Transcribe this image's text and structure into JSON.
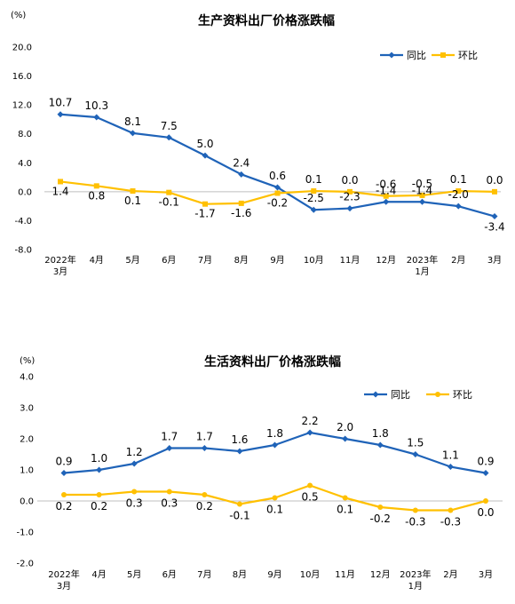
{
  "chart_data": [
    {
      "type": "line",
      "title": "生产资料出厂价格涨跌幅",
      "unit": "(%)",
      "categories": [
        "2022年\n3月",
        "4月",
        "5月",
        "6月",
        "7月",
        "8月",
        "9月",
        "10月",
        "11月",
        "12月",
        "2023年\n1月",
        "2月",
        "3月"
      ],
      "ylim": [
        -8,
        20
      ],
      "yticks": [
        "20.0",
        "16.0",
        "12.0",
        "8.0",
        "4.0",
        "0.0",
        "-4.0",
        "-8.0"
      ],
      "ytick_values": [
        20,
        16,
        12,
        8,
        4,
        0,
        -4,
        -8
      ],
      "legend_position": "top-right",
      "series": [
        {
          "name": "同比",
          "color": "#1F63B8",
          "marker": "diamond",
          "values": [
            10.7,
            10.3,
            8.1,
            7.5,
            5.0,
            2.4,
            0.6,
            -2.5,
            -2.3,
            -1.4,
            -1.4,
            -2.0,
            -3.4
          ],
          "labels": [
            "10.7",
            "10.3",
            "8.1",
            "7.5",
            "5.0",
            "2.4",
            "0.6",
            "-2.5",
            "-2.3",
            "-1.4",
            "-1.4",
            "-2.0",
            "-3.4"
          ]
        },
        {
          "name": "环比",
          "color": "#FFC000",
          "marker": "square",
          "values": [
            1.4,
            0.8,
            0.1,
            -0.1,
            -1.7,
            -1.6,
            -0.2,
            0.1,
            0.0,
            -0.6,
            -0.5,
            0.1,
            0.0
          ],
          "labels": [
            "1.4",
            "0.8",
            "0.1",
            "-0.1",
            "-1.7",
            "-1.6",
            "-0.2",
            "0.1",
            "0.0",
            "-0.6",
            "-0.5",
            "0.1",
            "0.0"
          ]
        }
      ]
    },
    {
      "type": "line",
      "title": "生活资料出厂价格涨跌幅",
      "unit": "(%)",
      "categories": [
        "2022年\n3月",
        "4月",
        "5月",
        "6月",
        "7月",
        "8月",
        "9月",
        "10月",
        "11月",
        "12月",
        "2023年\n1月",
        "2月",
        "3月"
      ],
      "ylim": [
        -2,
        4
      ],
      "yticks": [
        "4.0",
        "3.0",
        "2.0",
        "1.0",
        "0.0",
        "-1.0",
        "-2.0"
      ],
      "ytick_values": [
        4,
        3,
        2,
        1,
        0,
        -1,
        -2
      ],
      "legend_position": "top-right",
      "series": [
        {
          "name": "同比",
          "color": "#1F63B8",
          "marker": "diamond",
          "values": [
            0.9,
            1.0,
            1.2,
            1.7,
            1.7,
            1.6,
            1.8,
            2.2,
            2.0,
            1.8,
            1.5,
            1.1,
            0.9
          ],
          "labels": [
            "0.9",
            "1.0",
            "1.2",
            "1.7",
            "1.7",
            "1.6",
            "1.8",
            "2.2",
            "2.0",
            "1.8",
            "1.5",
            "1.1",
            "0.9"
          ]
        },
        {
          "name": "环比",
          "color": "#FFC000",
          "marker": "circle",
          "values": [
            0.2,
            0.2,
            0.3,
            0.3,
            0.2,
            -0.1,
            0.1,
            0.5,
            0.1,
            -0.2,
            -0.3,
            -0.3,
            0.0
          ],
          "labels": [
            "0.2",
            "0.2",
            "0.3",
            "0.3",
            "0.2",
            "-0.1",
            "0.1",
            "0.5",
            "0.1",
            "-0.2",
            "-0.3",
            "-0.3",
            "0.0"
          ]
        }
      ]
    }
  ]
}
